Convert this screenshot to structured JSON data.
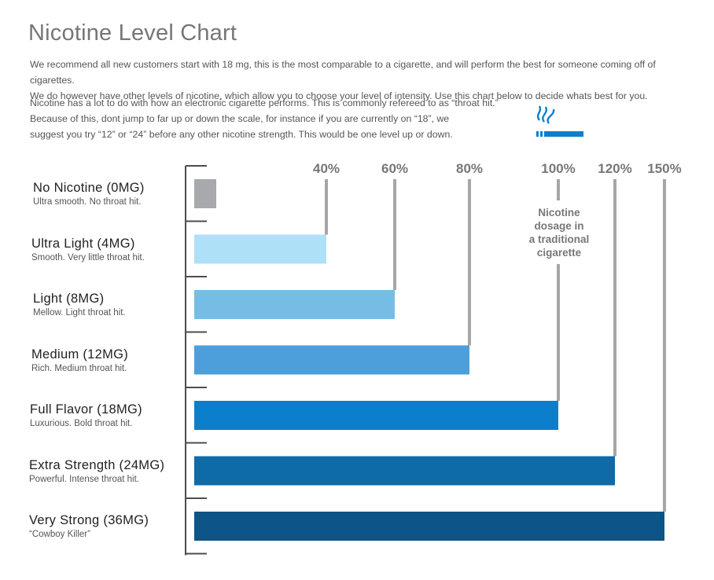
{
  "header": {
    "title": "Nicotine Level Chart",
    "intro_line1": "We recommend all new customers start with 18 mg, this is the most comparable to a cigarette, and will perform the best for someone coming off of cigarettes.",
    "intro_line2": "We do however have other levels of nicotine, which allow you to choose your level of intensity. Use this chart below to decide whats best for you.",
    "throat_line1": "Nicotine has a lot to do with how an electronic cigarette performs. This is commonly refereed to as “throat hit.”",
    "throat_line2": "Because of this, dont jump to far up or down the scale, for instance if you are currently on “18”, we",
    "throat_line3": "suggest you try “12” or “24” before any other nicotine strength. This would be one level up or down."
  },
  "icons": {
    "cigarette": "cigarette-smoke-icon"
  },
  "note": {
    "line1": "Nicotine",
    "line2": "dosage in",
    "line3": "a traditional",
    "line4": "cigarette"
  },
  "chart_data": {
    "type": "bar",
    "orientation": "horizontal",
    "title": "",
    "xlabel": "",
    "ylabel": "",
    "xlim": [
      0,
      150
    ],
    "grid": true,
    "ticks": [
      {
        "value": 40,
        "label": "40%"
      },
      {
        "value": 60,
        "label": "60%"
      },
      {
        "value": 80,
        "label": "80%"
      },
      {
        "value": 100,
        "label": "100%"
      },
      {
        "value": 120,
        "label": "120%"
      },
      {
        "value": 150,
        "label": "150%"
      }
    ],
    "categories": [
      {
        "name": "No Nicotine (0MG)",
        "desc": "Ultra smooth. No throat hit.",
        "value": 0,
        "color": "#a7a9ac"
      },
      {
        "name": "Ultra Light (4MG)",
        "desc": "Smooth. Very little throat hit.",
        "value": 40,
        "color": "#aee0f8"
      },
      {
        "name": "Light (8MG)",
        "desc": "Mellow. Light throat hit.",
        "value": 60,
        "color": "#76bde6"
      },
      {
        "name": "Medium (12MG)",
        "desc": "Rich. Medium throat hit.",
        "value": 80,
        "color": "#4c9fda"
      },
      {
        "name": "Full Flavor (18MG)",
        "desc": "Luxurious. Bold throat hit.",
        "value": 100,
        "color": "#0c7fcc"
      },
      {
        "name": "Extra Strength (24MG)",
        "desc": "Powerful. Intense throat hit.",
        "value": 120,
        "color": "#0f6aa8"
      },
      {
        "name": "Very Strong (36MG)",
        "desc": "“Cowboy Killer”",
        "value": 150,
        "color": "#0d5489"
      }
    ],
    "colors": {
      "axis": "#4d4d4d",
      "gridline": "#a6a6a6",
      "tick_text": "#777777"
    }
  }
}
